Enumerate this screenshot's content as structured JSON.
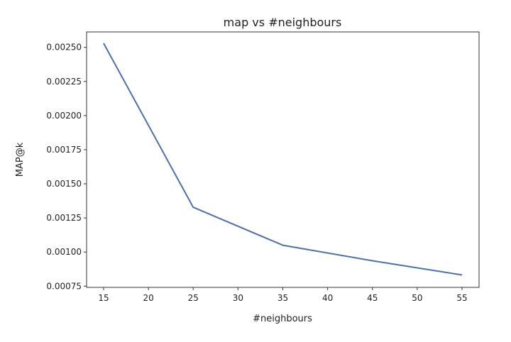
{
  "chart_data": {
    "type": "line",
    "title": "map vs #neighbours",
    "xlabel": "#neighbours",
    "ylabel": "MAP@k",
    "x": [
      15,
      25,
      35,
      45,
      55
    ],
    "series": [
      {
        "values": [
          0.00253,
          0.001328,
          0.00105,
          0.000936,
          0.000832
        ],
        "color": "#4c72a8"
      }
    ],
    "xticks": [
      15,
      20,
      25,
      30,
      35,
      40,
      45,
      50,
      55
    ],
    "yticks": [
      "0.00075",
      "0.00100",
      "0.00125",
      "0.00150",
      "0.00175",
      "0.00200",
      "0.00225",
      "0.00250"
    ],
    "xlim": [
      13.1,
      56.9
    ],
    "ylim": [
      0.000741,
      0.002613
    ],
    "grid": false
  }
}
